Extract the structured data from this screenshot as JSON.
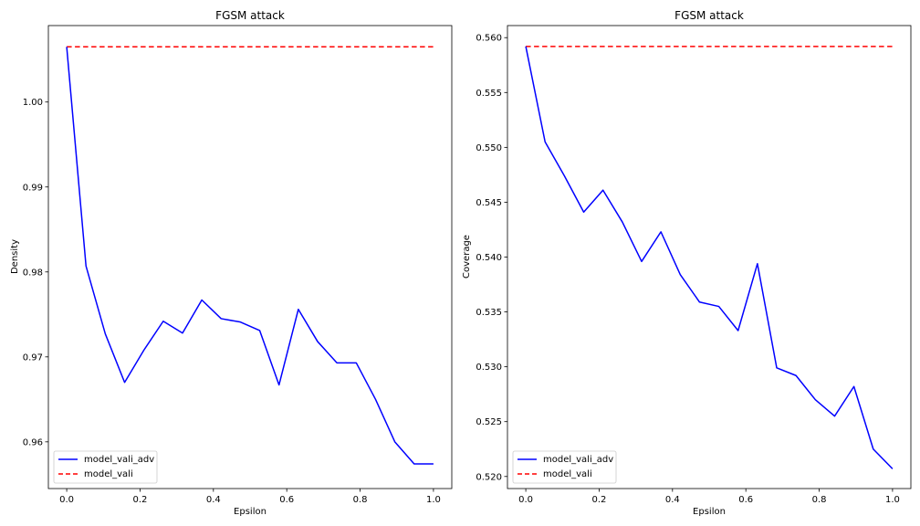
{
  "chart_data": [
    {
      "type": "line",
      "title": "FGSM attack",
      "xlabel": "Epsilon",
      "ylabel": "Density",
      "xlim": [
        -0.05,
        1.05
      ],
      "ylim": [
        0.9545,
        1.009
      ],
      "xticks": [
        0.0,
        0.2,
        0.4,
        0.6,
        0.8,
        1.0
      ],
      "xtick_labels": [
        "0.0",
        "0.2",
        "0.4",
        "0.6",
        "0.8",
        "1.0"
      ],
      "yticks": [
        0.96,
        0.97,
        0.98,
        0.99,
        1.0
      ],
      "ytick_labels": [
        "0.96",
        "0.97",
        "0.98",
        "0.99",
        "1.00"
      ],
      "legend": "lower-left",
      "series": [
        {
          "name": "model_vali_adv",
          "color": "#0000ff",
          "style": "solid",
          "x": [
            0.0,
            0.0526,
            0.1053,
            0.1579,
            0.2105,
            0.2632,
            0.3158,
            0.3684,
            0.4211,
            0.4737,
            0.5263,
            0.5789,
            0.6316,
            0.6842,
            0.7368,
            0.7895,
            0.8421,
            0.8947,
            0.9474,
            1.0
          ],
          "y": [
            1.0065,
            0.9807,
            0.9727,
            0.967,
            0.9708,
            0.9742,
            0.9728,
            0.9767,
            0.9745,
            0.9741,
            0.9731,
            0.9667,
            0.9756,
            0.9718,
            0.9693,
            0.9693,
            0.965,
            0.96,
            0.9574,
            0.9574
          ]
        },
        {
          "name": "model_vali",
          "color": "#ff0000",
          "style": "dashed",
          "x": [
            0.0,
            1.0
          ],
          "y": [
            1.0065,
            1.0065
          ]
        }
      ]
    },
    {
      "type": "line",
      "title": "FGSM attack",
      "xlabel": "Epsilon",
      "ylabel": "Coverage",
      "xlim": [
        -0.05,
        1.05
      ],
      "ylim": [
        0.5189,
        0.5611
      ],
      "xticks": [
        0.0,
        0.2,
        0.4,
        0.6,
        0.8,
        1.0
      ],
      "xtick_labels": [
        "0.0",
        "0.2",
        "0.4",
        "0.6",
        "0.8",
        "1.0"
      ],
      "yticks": [
        0.52,
        0.525,
        0.53,
        0.535,
        0.54,
        0.545,
        0.55,
        0.555,
        0.56
      ],
      "ytick_labels": [
        "0.520",
        "0.525",
        "0.530",
        "0.535",
        "0.540",
        "0.545",
        "0.550",
        "0.555",
        "0.560"
      ],
      "legend": "lower-left",
      "series": [
        {
          "name": "model_vali_adv",
          "color": "#0000ff",
          "style": "solid",
          "x": [
            0.0,
            0.0526,
            0.1053,
            0.1579,
            0.2105,
            0.2632,
            0.3158,
            0.3684,
            0.4211,
            0.4737,
            0.5263,
            0.5789,
            0.6316,
            0.6842,
            0.7368,
            0.7895,
            0.8421,
            0.8947,
            0.9474,
            1.0
          ],
          "y": [
            0.5592,
            0.5505,
            0.5474,
            0.5441,
            0.5461,
            0.5432,
            0.5396,
            0.5423,
            0.5384,
            0.5359,
            0.5355,
            0.5333,
            0.5394,
            0.5299,
            0.5292,
            0.527,
            0.5255,
            0.5282,
            0.5225,
            0.5207
          ]
        },
        {
          "name": "model_vali",
          "color": "#ff0000",
          "style": "dashed",
          "x": [
            0.0,
            1.0
          ],
          "y": [
            0.5592,
            0.5592
          ]
        }
      ]
    }
  ]
}
